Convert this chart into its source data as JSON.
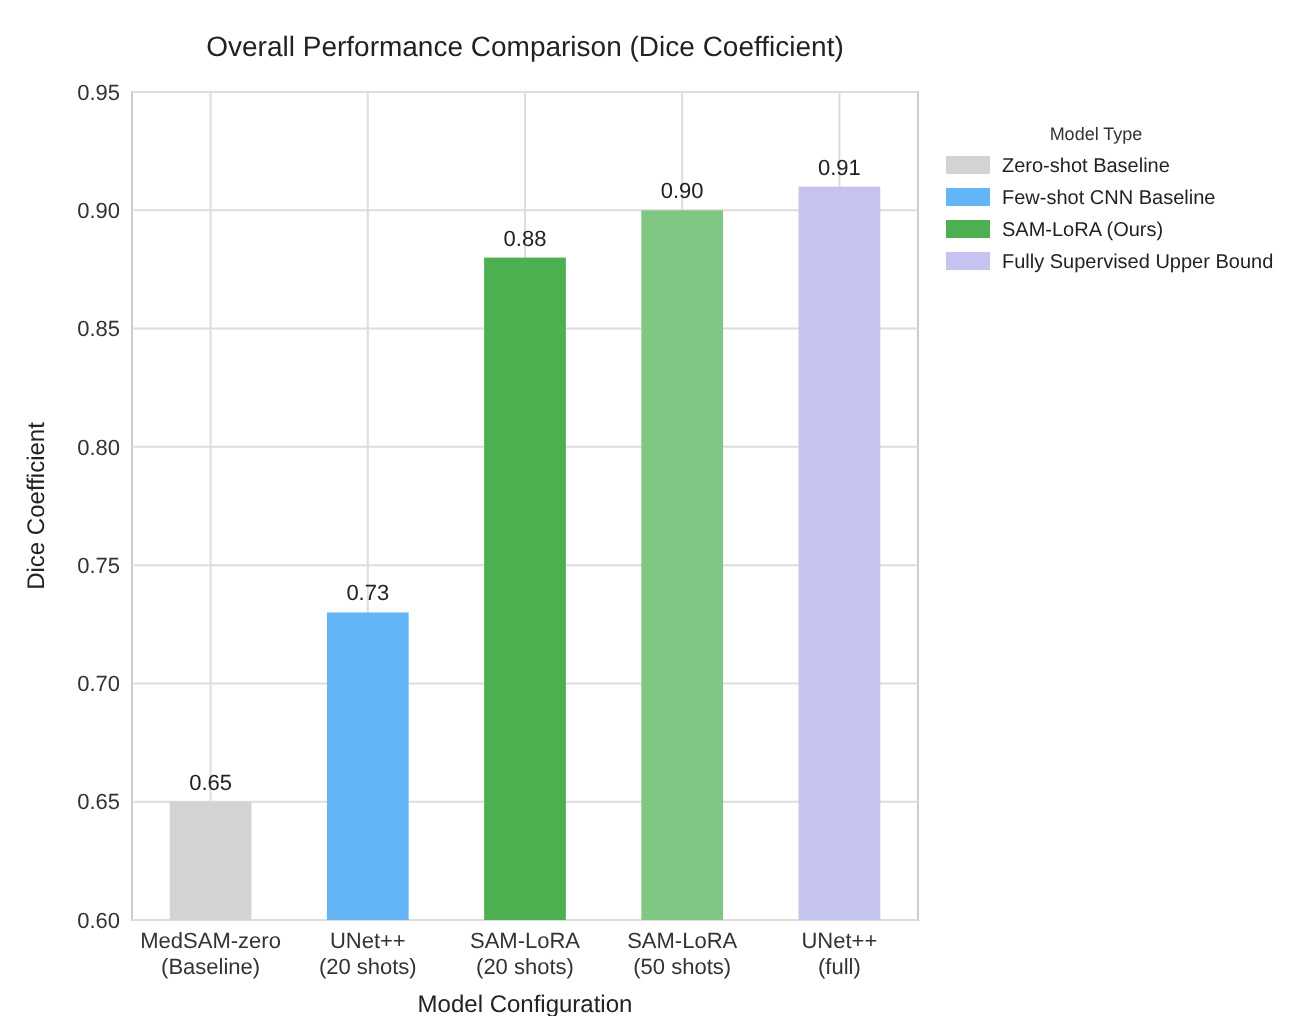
{
  "chart_data": {
    "type": "bar",
    "title": "Overall Performance Comparison (Dice Coefficient)",
    "xlabel": "Model Configuration",
    "ylabel": "Dice Coefficient",
    "legend_title": "Model Type",
    "categories": [
      "MedSAM-zero\n(Baseline)",
      "UNet++\n(20 shots)",
      "SAM-LoRA\n(20 shots)",
      "SAM-LoRA\n(50 shots)",
      "UNet++\n(full)"
    ],
    "series": [
      {
        "name": "Zero-shot Baseline",
        "color": "#d3d3d3",
        "values": [
          0.65,
          null,
          null,
          null,
          null
        ],
        "value_labels": [
          "0.65",
          null,
          null,
          null,
          null
        ]
      },
      {
        "name": "Few-shot CNN Baseline",
        "color": "#64b5f6",
        "values": [
          null,
          0.73,
          null,
          null,
          null
        ],
        "value_labels": [
          null,
          "0.73",
          null,
          null,
          null
        ]
      },
      {
        "name": "SAM-LoRA (Ours)",
        "color": "#4caf50",
        "colors": [
          null,
          null,
          "#4caf50",
          "#81c784",
          null
        ],
        "values": [
          null,
          null,
          0.88,
          0.9,
          null
        ],
        "value_labels": [
          null,
          null,
          "0.88",
          "0.90",
          null
        ]
      },
      {
        "name": "Fully Supervised Upper Bound",
        "color": "#c5c3f0",
        "values": [
          null,
          null,
          null,
          null,
          0.91
        ],
        "value_labels": [
          null,
          null,
          null,
          null,
          "0.91"
        ]
      }
    ],
    "ylim": [
      0.6,
      0.95
    ],
    "yticks": [
      {
        "value": 0.6,
        "label": "0.60"
      },
      {
        "value": 0.65,
        "label": "0.65"
      },
      {
        "value": 0.7,
        "label": "0.70"
      },
      {
        "value": 0.75,
        "label": "0.75"
      },
      {
        "value": 0.8,
        "label": "0.80"
      },
      {
        "value": 0.85,
        "label": "0.85"
      },
      {
        "value": 0.9,
        "label": "0.90"
      },
      {
        "value": 0.95,
        "label": "0.95"
      }
    ],
    "grid": true,
    "legend": "top right"
  }
}
